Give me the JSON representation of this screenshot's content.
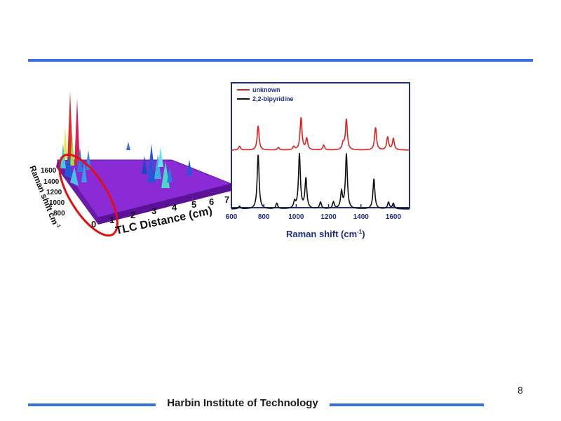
{
  "slide": {
    "page_number": "8",
    "footer": "Harbin Institute of Technology"
  },
  "colors": {
    "accent_rule": "#3a6fe0",
    "spectrum_border": "#1f2d8c",
    "unknown": "#e02020",
    "reference": "#111111",
    "surface": "#8a2bd6",
    "highlight_ellipse": "#e01010"
  },
  "surface_plot": {
    "x_label": "TLC Distance (cm)",
    "x_ticks": [
      "0",
      "1",
      "2",
      "3",
      "4",
      "5",
      "6",
      "7"
    ],
    "y_label": "Raman shift  cm",
    "y_label_sup": "-1",
    "y_ticks": [
      "1600",
      "1400",
      "1200",
      "1000",
      "800"
    ]
  },
  "chart_data": {
    "type": "line",
    "xlabel": "Raman shift (cm",
    "xlabel_sup": "-1",
    "xlabel_end": ")",
    "xlim": [
      600,
      1700
    ],
    "x_ticks": [
      "600",
      "800",
      "1000",
      "1200",
      "1400",
      "1600"
    ],
    "series": [
      {
        "name": "unknown",
        "peaks": [
          [
            650,
            0.12
          ],
          [
            765,
            0.75
          ],
          [
            890,
            0.08
          ],
          [
            985,
            0.1
          ],
          [
            1030,
            1.0
          ],
          [
            1065,
            0.35
          ],
          [
            1170,
            0.15
          ],
          [
            1290,
            0.2
          ],
          [
            1310,
            0.95
          ],
          [
            1490,
            0.7
          ],
          [
            1565,
            0.4
          ],
          [
            1600,
            0.35
          ]
        ]
      },
      {
        "name": "2,2-bipyridine",
        "peaks": [
          [
            650,
            0.05
          ],
          [
            765,
            1.0
          ],
          [
            880,
            0.1
          ],
          [
            990,
            0.12
          ],
          [
            1020,
            1.0
          ],
          [
            1060,
            0.55
          ],
          [
            1150,
            0.12
          ],
          [
            1230,
            0.12
          ],
          [
            1280,
            0.3
          ],
          [
            1310,
            1.0
          ],
          [
            1480,
            0.55
          ],
          [
            1570,
            0.12
          ],
          [
            1600,
            0.1
          ]
        ]
      }
    ]
  }
}
